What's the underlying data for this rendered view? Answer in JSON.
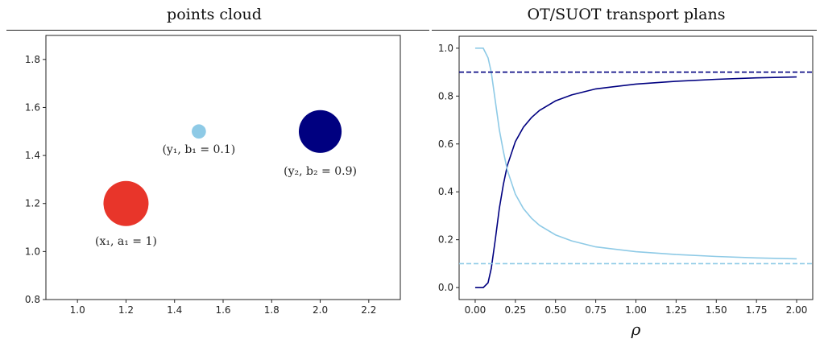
{
  "header": {
    "left_title": "points cloud",
    "right_title": "OT/SUOT transport plans"
  },
  "chart_data": [
    {
      "type": "scatter",
      "title": "points cloud",
      "xlim": [
        0.87,
        2.33
      ],
      "ylim": [
        0.8,
        1.9
      ],
      "xticks": [
        1.0,
        1.2,
        1.4,
        1.6,
        1.8,
        2.0,
        2.2
      ],
      "yticks": [
        0.8,
        1.0,
        1.2,
        1.4,
        1.6,
        1.8
      ],
      "xtick_labels": [
        "1.0",
        "1.2",
        "1.4",
        "1.6",
        "1.8",
        "2.0",
        "2.2"
      ],
      "ytick_labels": [
        "0.8",
        "1.0",
        "1.2",
        "1.4",
        "1.6",
        "1.8"
      ],
      "grid": false,
      "points": [
        {
          "x": 1.2,
          "y": 1.2,
          "weight": 1.0,
          "color": "#e8352a",
          "label": "(x₁, a₁ = 1)",
          "label_x": 1.2,
          "label_y": 1.045
        },
        {
          "x": 1.5,
          "y": 1.5,
          "weight": 0.1,
          "color": "#8ecae6",
          "label": "(y₁, b₁ = 0.1)",
          "label_x": 1.5,
          "label_y": 1.427
        },
        {
          "x": 2.0,
          "y": 1.5,
          "weight": 0.9,
          "color": "#000080",
          "label": "(y₂, b₂ = 0.9)",
          "label_x": 2.0,
          "label_y": 1.337
        }
      ]
    },
    {
      "type": "line",
      "title": "OT/SUOT transport plans",
      "xlabel": "ρ",
      "ylabel": "",
      "xlim": [
        -0.1,
        2.1
      ],
      "ylim": [
        -0.05,
        1.05
      ],
      "xticks": [
        0.0,
        0.25,
        0.5,
        0.75,
        1.0,
        1.25,
        1.5,
        1.75,
        2.0
      ],
      "yticks": [
        0.0,
        0.2,
        0.4,
        0.6,
        0.8,
        1.0
      ],
      "xtick_labels": [
        "0.00",
        "0.25",
        "0.50",
        "0.75",
        "1.00",
        "1.25",
        "1.50",
        "1.75",
        "2.00"
      ],
      "ytick_labels": [
        "0.0",
        "0.2",
        "0.4",
        "0.6",
        "0.8",
        "1.0"
      ],
      "grid": false,
      "series": [
        {
          "color": "#000080",
          "style": "solid",
          "x": [
            0.0,
            0.05,
            0.08,
            0.1,
            0.125,
            0.15,
            0.175,
            0.2,
            0.25,
            0.3,
            0.35,
            0.4,
            0.5,
            0.6,
            0.75,
            1.0,
            1.25,
            1.5,
            1.75,
            2.0
          ],
          "y": [
            0.0,
            0.0,
            0.02,
            0.08,
            0.2,
            0.33,
            0.43,
            0.51,
            0.61,
            0.67,
            0.71,
            0.74,
            0.78,
            0.805,
            0.83,
            0.85,
            0.862,
            0.87,
            0.876,
            0.88
          ]
        },
        {
          "color": "#8ecae6",
          "style": "solid",
          "x": [
            0.0,
            0.05,
            0.08,
            0.1,
            0.125,
            0.15,
            0.175,
            0.2,
            0.25,
            0.3,
            0.35,
            0.4,
            0.5,
            0.6,
            0.75,
            1.0,
            1.25,
            1.5,
            1.75,
            2.0
          ],
          "y": [
            1.0,
            1.0,
            0.96,
            0.9,
            0.78,
            0.66,
            0.57,
            0.49,
            0.39,
            0.33,
            0.29,
            0.26,
            0.22,
            0.195,
            0.17,
            0.15,
            0.138,
            0.13,
            0.124,
            0.12
          ]
        },
        {
          "color": "#000080",
          "style": "dashed",
          "x": [
            -0.1,
            2.1
          ],
          "y": [
            0.9,
            0.9
          ]
        },
        {
          "color": "#8ecae6",
          "style": "dashed",
          "x": [
            -0.1,
            2.1
          ],
          "y": [
            0.1,
            0.1
          ]
        }
      ]
    }
  ]
}
